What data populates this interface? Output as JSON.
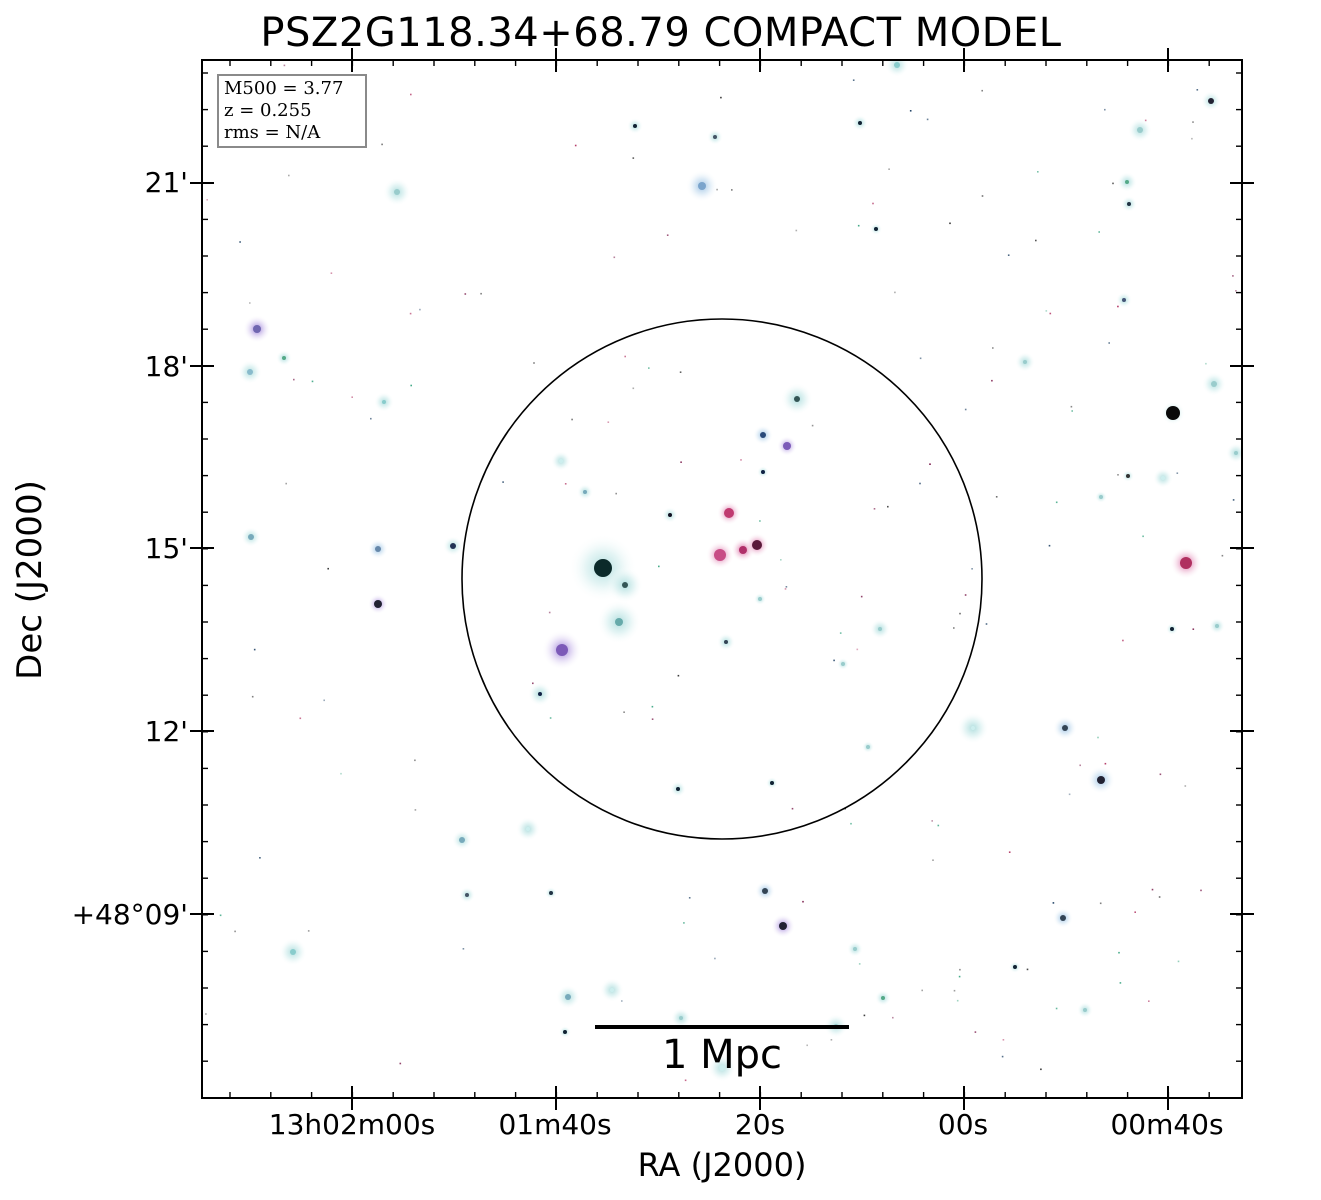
{
  "title": "PSZ2G118.34+68.79 COMPACT MODEL",
  "axes": {
    "xlabel": "RA (J2000)",
    "ylabel": "Dec (J2000)",
    "x_ticks": [
      "13h02m00s",
      "01m40s",
      "20s",
      "00s",
      "00m40s"
    ],
    "y_ticks": [
      "21'",
      "18'",
      "15'",
      "12'",
      "+48°09'"
    ]
  },
  "info": {
    "m500": "M500 = 3.77",
    "z": "z = 0.255",
    "rms": "rms = N/A"
  },
  "scalebar": {
    "label": "1 Mpc"
  },
  "colors": {
    "frame": "#000000",
    "background": "#ffffff",
    "halo_cyan": "#bfe6e6",
    "source_purple": "#a58fd8",
    "source_pink": "#e06c9f",
    "core_dark": "#0b2a2a"
  }
}
